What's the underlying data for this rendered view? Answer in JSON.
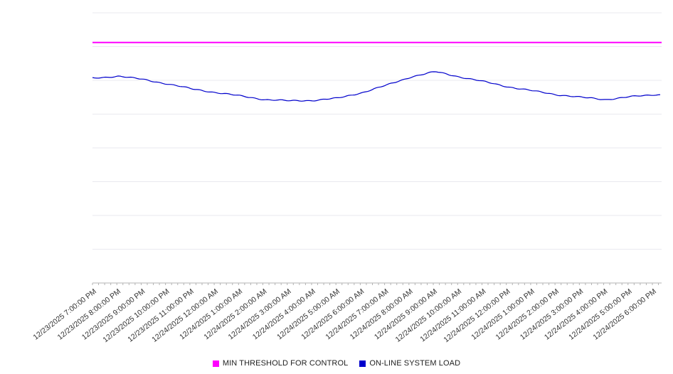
{
  "legend": {
    "threshold_label": "MIN THRESHOLD FOR CONTROL",
    "load_label": "ON-LINE SYSTEM LOAD"
  },
  "colors": {
    "threshold": "#ff00ff",
    "load": "#0000cc",
    "grid": "#e9e9ef",
    "axis": "#b3b3b3",
    "tick_text": "#333333"
  },
  "chart_data": {
    "type": "line",
    "title": "",
    "xlabel": "",
    "ylabel": "",
    "ylim": [
      0,
      100
    ],
    "y_tick_labels_visible": false,
    "grid": "horizontal",
    "grid_divisions": 8,
    "legend_position": "bottom-center",
    "x": [
      "12/23/2025 7:00:00 PM",
      "12/23/2025 8:00:00 PM",
      "12/23/2025 9:00:00 PM",
      "12/23/2025 10:00:00 PM",
      "12/23/2025 11:00:00 PM",
      "12/24/2025 12:00:00 AM",
      "12/24/2025 1:00:00 AM",
      "12/24/2025 2:00:00 AM",
      "12/24/2025 3:00:00 AM",
      "12/24/2025 4:00:00 AM",
      "12/24/2025 5:00:00 AM",
      "12/24/2025 6:00:00 AM",
      "12/24/2025 7:00:00 AM",
      "12/24/2025 8:00:00 AM",
      "12/24/2025 9:00:00 AM",
      "12/24/2025 10:00:00 AM",
      "12/24/2025 11:00:00 AM",
      "12/24/2025 12:00:00 PM",
      "12/24/2025 1:00:00 PM",
      "12/24/2025 2:00:00 PM",
      "12/24/2025 3:00:00 PM",
      "12/24/2025 4:00:00 PM",
      "12/24/2025 5:00:00 PM",
      "12/24/2025 6:00:00 PM"
    ],
    "series": [
      {
        "name": "MIN THRESHOLD FOR CONTROL",
        "color": "#ff00ff",
        "style": "constant-line",
        "values": [
          89,
          89,
          89,
          89,
          89,
          89,
          89,
          89,
          89,
          89,
          89,
          89,
          89,
          89,
          89,
          89,
          89,
          89,
          89,
          89,
          89,
          89,
          89,
          89
        ]
      },
      {
        "name": "ON-LINE SYSTEM LOAD",
        "color": "#0000cc",
        "style": "noisy-line",
        "values": [
          75.8,
          76.6,
          75.3,
          73.7,
          71.8,
          70.5,
          69.2,
          67.9,
          67.4,
          67.6,
          68.4,
          70.5,
          73.2,
          76.3,
          78.2,
          76.3,
          74.5,
          72.6,
          71.1,
          69.7,
          68.7,
          67.9,
          68.9,
          69.7
        ]
      }
    ]
  }
}
